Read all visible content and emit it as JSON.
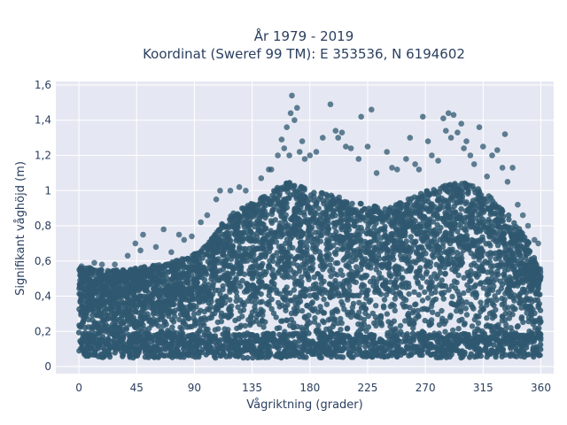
{
  "chart_data": {
    "type": "scatter",
    "title_line1": "År 1979 - 2019",
    "title_line2": "Koordinat (Sweref 99 TM): E 353536, N 6194602",
    "xlabel": "Vågriktning (grader)",
    "ylabel": "Signifikant våghöjd (m)",
    "xlim": [
      -18,
      370
    ],
    "ylim": [
      -0.04,
      1.62
    ],
    "x_ticks": [
      0,
      45,
      90,
      135,
      180,
      225,
      270,
      315,
      360
    ],
    "x_tick_labels": [
      "0",
      "45",
      "90",
      "135",
      "180",
      "225",
      "270",
      "315",
      "360"
    ],
    "y_ticks": [
      0,
      0.2,
      0.4,
      0.6,
      0.8,
      1.0,
      1.2,
      1.4,
      1.6
    ],
    "y_tick_labels": [
      "0",
      "0,2",
      "0,4",
      "0,6",
      "0,8",
      "1",
      "1,2",
      "1,4",
      "1,6"
    ],
    "grid": true,
    "marker_color": "#2f5870",
    "plot_background": "#e5e8f2",
    "upper_envelope": [
      [
        0,
        0.57
      ],
      [
        10,
        0.56
      ],
      [
        20,
        0.55
      ],
      [
        30,
        0.55
      ],
      [
        45,
        0.56
      ],
      [
        60,
        0.58
      ],
      [
        75,
        0.6
      ],
      [
        90,
        0.64
      ],
      [
        100,
        0.7
      ],
      [
        110,
        0.8
      ],
      [
        120,
        0.88
      ],
      [
        135,
        0.93
      ],
      [
        150,
        1.0
      ],
      [
        165,
        1.06
      ],
      [
        180,
        1.0
      ],
      [
        195,
        0.98
      ],
      [
        210,
        0.95
      ],
      [
        225,
        0.92
      ],
      [
        240,
        0.9
      ],
      [
        255,
        0.95
      ],
      [
        270,
        1.0
      ],
      [
        285,
        1.03
      ],
      [
        300,
        1.05
      ],
      [
        315,
        1.0
      ],
      [
        330,
        0.9
      ],
      [
        340,
        0.82
      ],
      [
        350,
        0.72
      ],
      [
        360,
        0.55
      ]
    ],
    "outliers": [
      {
        "x": 2,
        "y": 0.57
      },
      {
        "x": 12,
        "y": 0.59
      },
      {
        "x": 18,
        "y": 0.58
      },
      {
        "x": 28,
        "y": 0.58
      },
      {
        "x": 38,
        "y": 0.63
      },
      {
        "x": 44,
        "y": 0.7
      },
      {
        "x": 48,
        "y": 0.66
      },
      {
        "x": 50,
        "y": 0.75
      },
      {
        "x": 60,
        "y": 0.68
      },
      {
        "x": 66,
        "y": 0.78
      },
      {
        "x": 72,
        "y": 0.65
      },
      {
        "x": 78,
        "y": 0.75
      },
      {
        "x": 82,
        "y": 0.72
      },
      {
        "x": 88,
        "y": 0.74
      },
      {
        "x": 95,
        "y": 0.82
      },
      {
        "x": 100,
        "y": 0.86
      },
      {
        "x": 107,
        "y": 0.95
      },
      {
        "x": 110,
        "y": 1.0
      },
      {
        "x": 118,
        "y": 1.0
      },
      {
        "x": 125,
        "y": 1.02
      },
      {
        "x": 130,
        "y": 1.0
      },
      {
        "x": 142,
        "y": 1.07
      },
      {
        "x": 148,
        "y": 1.12
      },
      {
        "x": 150,
        "y": 1.12
      },
      {
        "x": 155,
        "y": 1.2
      },
      {
        "x": 158,
        "y": 1.29
      },
      {
        "x": 160,
        "y": 1.24
      },
      {
        "x": 162,
        "y": 1.36
      },
      {
        "x": 164,
        "y": 1.2
      },
      {
        "x": 165,
        "y": 1.44
      },
      {
        "x": 166,
        "y": 1.54
      },
      {
        "x": 168,
        "y": 1.4
      },
      {
        "x": 170,
        "y": 1.47
      },
      {
        "x": 172,
        "y": 1.22
      },
      {
        "x": 174,
        "y": 1.28
      },
      {
        "x": 176,
        "y": 1.18
      },
      {
        "x": 180,
        "y": 1.2
      },
      {
        "x": 185,
        "y": 1.22
      },
      {
        "x": 190,
        "y": 1.3
      },
      {
        "x": 196,
        "y": 1.49
      },
      {
        "x": 200,
        "y": 1.34
      },
      {
        "x": 202,
        "y": 1.3
      },
      {
        "x": 205,
        "y": 1.33
      },
      {
        "x": 208,
        "y": 1.25
      },
      {
        "x": 212,
        "y": 1.24
      },
      {
        "x": 218,
        "y": 1.18
      },
      {
        "x": 220,
        "y": 1.42
      },
      {
        "x": 225,
        "y": 1.25
      },
      {
        "x": 228,
        "y": 1.46
      },
      {
        "x": 232,
        "y": 1.1
      },
      {
        "x": 240,
        "y": 1.22
      },
      {
        "x": 244,
        "y": 1.13
      },
      {
        "x": 248,
        "y": 1.12
      },
      {
        "x": 255,
        "y": 1.18
      },
      {
        "x": 258,
        "y": 1.3
      },
      {
        "x": 262,
        "y": 1.15
      },
      {
        "x": 265,
        "y": 1.12
      },
      {
        "x": 268,
        "y": 1.42
      },
      {
        "x": 272,
        "y": 1.28
      },
      {
        "x": 275,
        "y": 1.2
      },
      {
        "x": 280,
        "y": 1.17
      },
      {
        "x": 284,
        "y": 1.41
      },
      {
        "x": 286,
        "y": 1.34
      },
      {
        "x": 288,
        "y": 1.44
      },
      {
        "x": 290,
        "y": 1.3
      },
      {
        "x": 292,
        "y": 1.43
      },
      {
        "x": 295,
        "y": 1.33
      },
      {
        "x": 298,
        "y": 1.38
      },
      {
        "x": 300,
        "y": 1.24
      },
      {
        "x": 302,
        "y": 1.28
      },
      {
        "x": 305,
        "y": 1.2
      },
      {
        "x": 308,
        "y": 1.15
      },
      {
        "x": 312,
        "y": 1.36
      },
      {
        "x": 315,
        "y": 1.25
      },
      {
        "x": 318,
        "y": 1.08
      },
      {
        "x": 322,
        "y": 1.2
      },
      {
        "x": 326,
        "y": 1.23
      },
      {
        "x": 330,
        "y": 1.13
      },
      {
        "x": 332,
        "y": 1.32
      },
      {
        "x": 334,
        "y": 1.05
      },
      {
        "x": 338,
        "y": 1.13
      },
      {
        "x": 342,
        "y": 0.92
      },
      {
        "x": 346,
        "y": 0.86
      },
      {
        "x": 350,
        "y": 0.8
      },
      {
        "x": 355,
        "y": 0.72
      },
      {
        "x": 358,
        "y": 0.7
      }
    ]
  }
}
